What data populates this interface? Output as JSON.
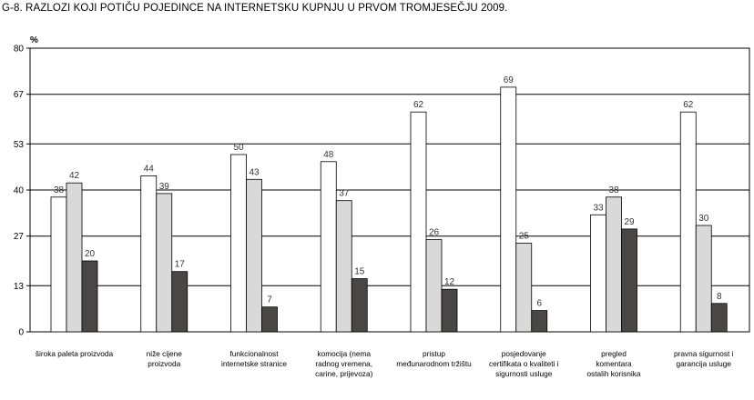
{
  "header": {
    "title": "G-8. RAZLOZI KOJI POTIČU POJEDINCE NA INTERNETSKU KUPNJU U PRVOM TROMJESEČJU 2009."
  },
  "chart_data": {
    "type": "bar",
    "title": "G-8. RAZLOZI KOJI POTIČU POJEDINCE NA INTERNETSKU KUPNJU U PRVOM TROMJESEČJU 2009.",
    "ylabel": "%",
    "ylim": [
      0,
      80
    ],
    "yticks": [
      "0",
      "13",
      "27",
      "40",
      "53",
      "67",
      "80"
    ],
    "grid": true,
    "categories": [
      [
        "široka paleta proizvoda"
      ],
      [
        "niže cijene",
        "proizvoda"
      ],
      [
        "funkcionalnost",
        "internetske stranice"
      ],
      [
        "komocija (nema",
        "radnog vremena,",
        "carine, prijevoza)"
      ],
      [
        "pristup",
        "međunarodnom tržištu"
      ],
      [
        "posjedovanje",
        "certifikata o kvaliteti i",
        "sigurnosti usluge"
      ],
      [
        "pregled",
        "komentara",
        "ostalih korisnika"
      ],
      [
        "pravna sigurnost i",
        "garancija usluge"
      ]
    ],
    "series": [
      {
        "values": [
          38,
          44,
          50,
          48,
          62,
          69,
          33,
          62
        ],
        "color": "#ffffff"
      },
      {
        "values": [
          42,
          39,
          43,
          37,
          26,
          25,
          38,
          30
        ],
        "color": "#d9d9d9"
      },
      {
        "values": [
          20,
          17,
          7,
          15,
          12,
          6,
          29,
          8
        ],
        "color": "#4a4646"
      }
    ]
  }
}
